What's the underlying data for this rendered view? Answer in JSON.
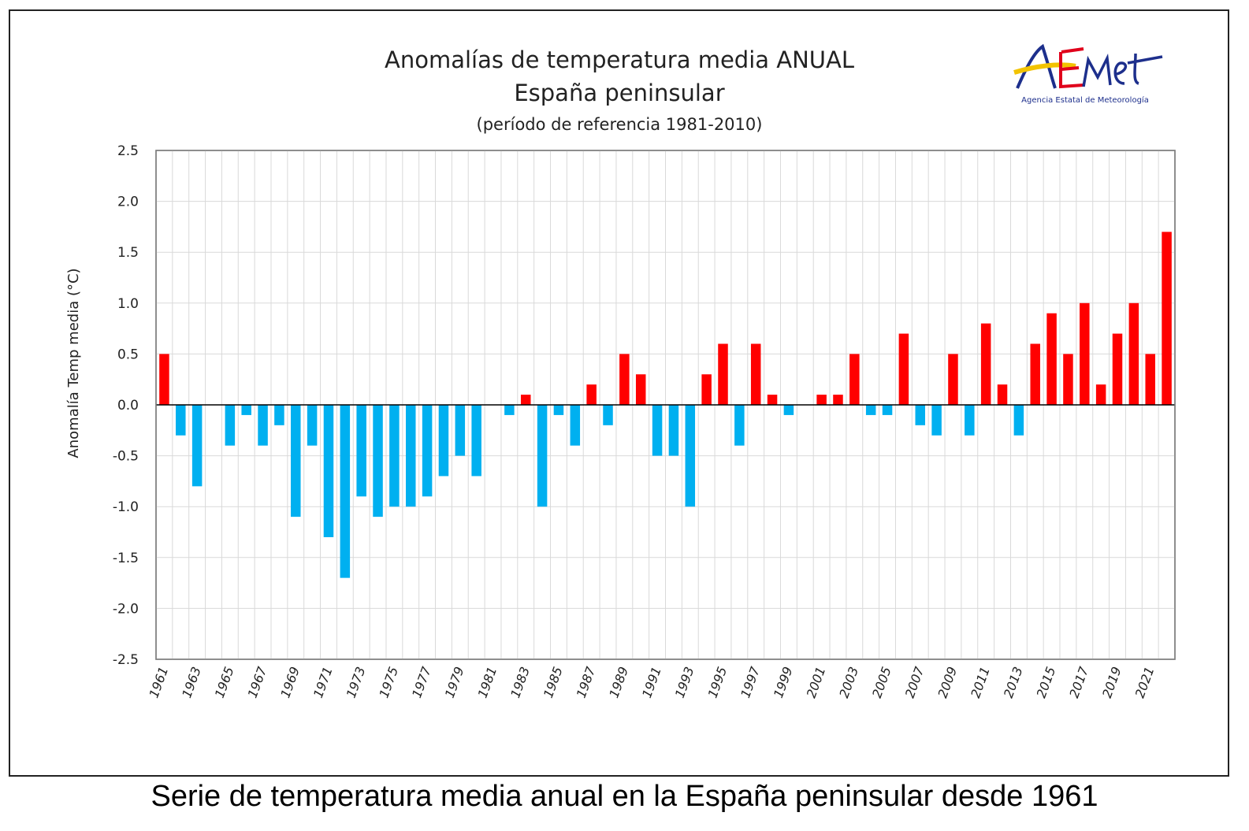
{
  "caption": "Serie de temperatura media anual en la España peninsular desde 1961",
  "logo": {
    "text": "AEMet",
    "subtitle": "Agencia Estatal de Meteorología",
    "colors": {
      "blue": "#1d2f8c",
      "yellow": "#f2c300",
      "red": "#e0001b"
    }
  },
  "colors": {
    "positive": "#ff0000",
    "negative": "#00b0f0",
    "grid": "#d9d9d9",
    "axis": "#000000"
  },
  "chart_data": {
    "type": "bar",
    "title": "Anomalías de temperatura media ANUAL",
    "subtitle": "España peninsular",
    "subtitle2": "(período de referencia 1981-2010)",
    "xlabel": "",
    "ylabel": "Anomalía Temp media (°C)",
    "ylim": [
      -2.5,
      2.5
    ],
    "yticks": [
      "2.5",
      "2.0",
      "1.5",
      "1.0",
      "0.5",
      "0.0",
      "-0.5",
      "-1.0",
      "-1.5",
      "-2.0",
      "-2.5"
    ],
    "ytick_values": [
      2.5,
      2.0,
      1.5,
      1.0,
      0.5,
      0.0,
      -0.5,
      -1.0,
      -1.5,
      -2.0,
      -2.5
    ],
    "xtick_labels": [
      "1961",
      "1963",
      "1965",
      "1967",
      "1969",
      "1971",
      "1973",
      "1975",
      "1977",
      "1979",
      "1981",
      "1983",
      "1985",
      "1987",
      "1989",
      "1991",
      "1993",
      "1995",
      "1997",
      "1999",
      "2001",
      "2003",
      "2005",
      "2007",
      "2009",
      "2011",
      "2013",
      "2015",
      "2017",
      "2019",
      "2021"
    ],
    "grid": true,
    "legend": "none",
    "categories": [
      1961,
      1962,
      1963,
      1964,
      1965,
      1966,
      1967,
      1968,
      1969,
      1970,
      1971,
      1972,
      1973,
      1974,
      1975,
      1976,
      1977,
      1978,
      1979,
      1980,
      1981,
      1982,
      1983,
      1984,
      1985,
      1986,
      1987,
      1988,
      1989,
      1990,
      1991,
      1992,
      1993,
      1994,
      1995,
      1996,
      1997,
      1998,
      1999,
      2000,
      2001,
      2002,
      2003,
      2004,
      2005,
      2006,
      2007,
      2008,
      2009,
      2010,
      2011,
      2012,
      2013,
      2014,
      2015,
      2016,
      2017,
      2018,
      2019,
      2020,
      2021,
      2022
    ],
    "values": [
      0.5,
      -0.3,
      -0.8,
      0.0,
      -0.4,
      -0.1,
      -0.4,
      -0.2,
      -1.1,
      -0.4,
      -1.3,
      -1.7,
      -0.9,
      -1.1,
      -1.0,
      -1.0,
      -0.9,
      -0.7,
      -0.5,
      -0.7,
      0.0,
      -0.1,
      0.1,
      -1.0,
      -0.1,
      -0.4,
      0.2,
      -0.2,
      0.5,
      0.3,
      -0.5,
      -0.5,
      -1.0,
      0.3,
      0.6,
      -0.4,
      0.6,
      0.1,
      -0.1,
      0.0,
      0.1,
      0.1,
      0.5,
      -0.1,
      -0.1,
      0.7,
      -0.2,
      -0.3,
      0.5,
      -0.3,
      0.8,
      0.2,
      -0.3,
      0.6,
      0.9,
      0.5,
      1.0,
      0.2,
      0.7,
      1.0,
      0.5,
      1.7
    ]
  }
}
